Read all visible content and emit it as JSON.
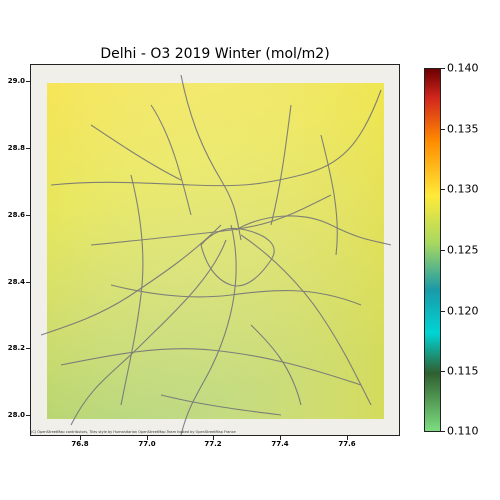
{
  "title": "Delhi - O3 2019 Winter (mol/m2)",
  "attribution": "(C) OpenStreetMap contributors, Tiles style by Humanitarian OpenStreetMap Team hosted by OpenStreetMap France",
  "map_data": {
    "lon_range": [
      76.68,
      77.73
    ],
    "lat_range": [
      27.95,
      29.05
    ],
    "data_extent_lon": [
      76.73,
      77.71
    ],
    "data_extent_lat": [
      28.0,
      29.0
    ],
    "x_ticks": [
      "76.8",
      "77.0",
      "77.2",
      "77.4",
      "77.6"
    ],
    "y_ticks": [
      "29.0",
      "28.8",
      "28.6",
      "28.4",
      "28.2",
      "28.0"
    ]
  },
  "colorbar": {
    "min": 0.11,
    "max": 0.14,
    "tick_labels": [
      "0.140",
      "0.135",
      "0.130",
      "0.125",
      "0.120",
      "0.115",
      "0.110"
    ],
    "colors": [
      "#7dde80",
      "#2f5f2f",
      "#00d4d4",
      "#1a9aa8",
      "#a8d860",
      "#ffea3a",
      "#ff8c00",
      "#d2261e",
      "#6b0000"
    ]
  }
}
